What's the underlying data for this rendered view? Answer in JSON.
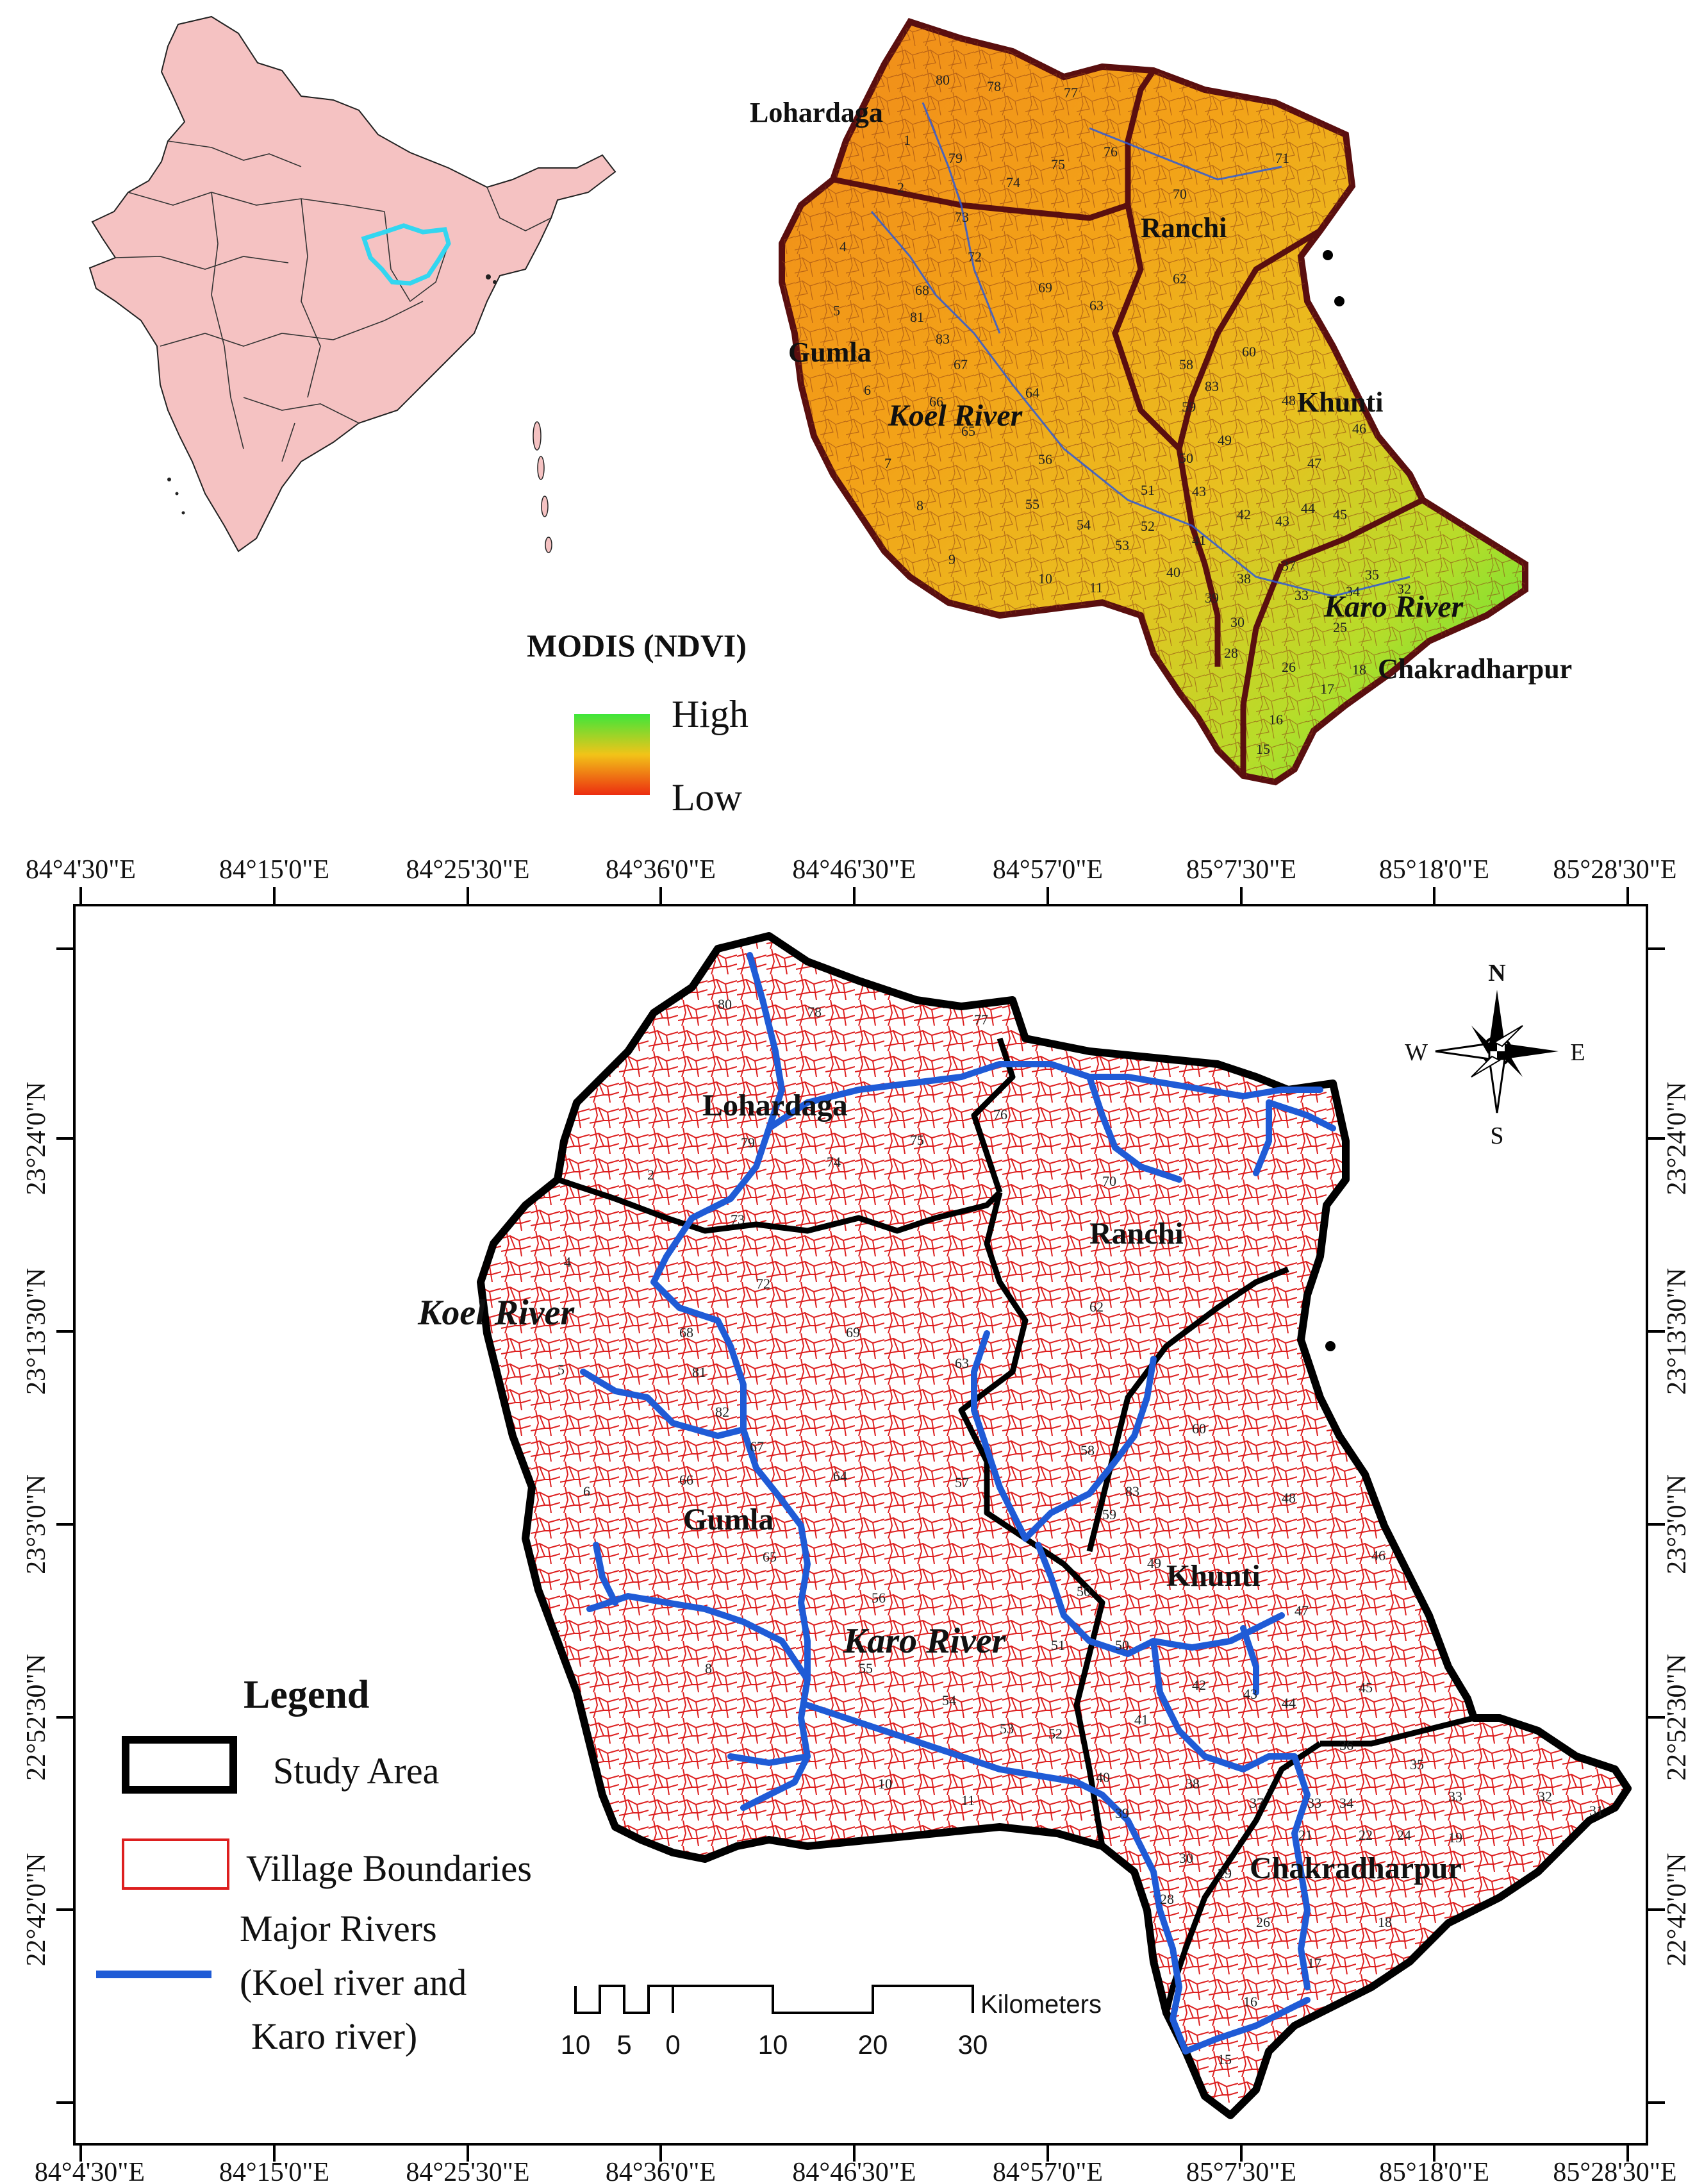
{
  "colors": {
    "india_fill": "#f5c2c2",
    "highlight": "#33d6f0",
    "ndvi_high": "#3ee63a",
    "ndvi_mid": "#f2c418",
    "ndvi_low": "#ec2d10",
    "village_boundary": "#dd1f1f",
    "river": "#1f5bd6",
    "study_area": "#000000",
    "district_boundary_top": "#5a0f0f"
  },
  "icons": {
    "north_arrow": "compass-rose-icon"
  },
  "inset": {
    "ndvi_title": "MODIS (NDVI)",
    "ndvi_high": "High",
    "ndvi_low": "Low",
    "districts": [
      "Lohardaga",
      "Ranchi",
      "Gumla",
      "Khunti",
      "Chakradharpur"
    ],
    "rivers": [
      "Koel River",
      "Karo River"
    ]
  },
  "main_map": {
    "x_ticks": [
      "84°4'30\"E",
      "84°15'0\"E",
      "84°25'30\"E",
      "84°36'0\"E",
      "84°46'30\"E",
      "84°57'0\"E",
      "85°7'30\"E",
      "85°18'0\"E",
      "85°28'30\"E"
    ],
    "y_ticks": [
      "23°24'0\"N",
      "23°13'30\"N",
      "23°3'0\"N",
      "22°52'30\"N",
      "22°42'0\"N"
    ],
    "districts": [
      "Lohardaga",
      "Ranchi",
      "Gumla",
      "Khunti",
      "Chakradharpur"
    ],
    "rivers": [
      "Koel River",
      "Karo River"
    ],
    "compass": {
      "n": "N",
      "s": "S",
      "e": "E",
      "w": "W"
    },
    "scale": {
      "labels": [
        "10",
        "5",
        "0",
        "10",
        "20",
        "30"
      ],
      "unit": "Kilometers"
    }
  },
  "legend": {
    "title": "Legend",
    "items": [
      {
        "label": "Study Area"
      },
      {
        "label": "Village Boundaries"
      },
      {
        "label": "Major Rivers"
      }
    ],
    "river_detail_1": "(Koel river and",
    "river_detail_2": "Karo river)"
  }
}
